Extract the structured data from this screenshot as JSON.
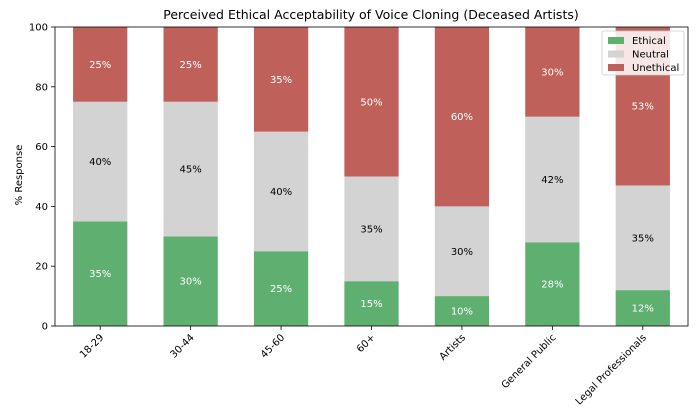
{
  "chart_data": {
    "type": "bar",
    "stacked": true,
    "title": "Perceived Ethical Acceptability of Voice Cloning (Deceased Artists)",
    "xlabel": "",
    "ylabel": "% Response",
    "ylim": [
      0,
      100
    ],
    "yticks": [
      0,
      20,
      40,
      60,
      80,
      100
    ],
    "grid": false,
    "legend_position": "top-right",
    "categories": [
      "18-29",
      "30-44",
      "45-60",
      "60+",
      "Artists",
      "General Public",
      "Legal Professionals"
    ],
    "series": [
      {
        "name": "Ethical",
        "color": "#5faf70",
        "label_color": "#ffffff",
        "values": [
          35,
          30,
          25,
          15,
          10,
          28,
          12
        ],
        "labels": [
          "35%",
          "30%",
          "25%",
          "15%",
          "10%",
          "28%",
          "12%"
        ]
      },
      {
        "name": "Neutral",
        "color": "#d3d3d3",
        "label_color": "#000000",
        "values": [
          40,
          45,
          40,
          35,
          30,
          42,
          35
        ],
        "labels": [
          "40%",
          "45%",
          "40%",
          "35%",
          "30%",
          "42%",
          "35%"
        ]
      },
      {
        "name": "Unethical",
        "color": "#c0605a",
        "label_color": "#ffffff",
        "values": [
          25,
          25,
          35,
          50,
          60,
          30,
          53
        ],
        "labels": [
          "25%",
          "25%",
          "35%",
          "50%",
          "60%",
          "30%",
          "53%"
        ]
      }
    ]
  }
}
